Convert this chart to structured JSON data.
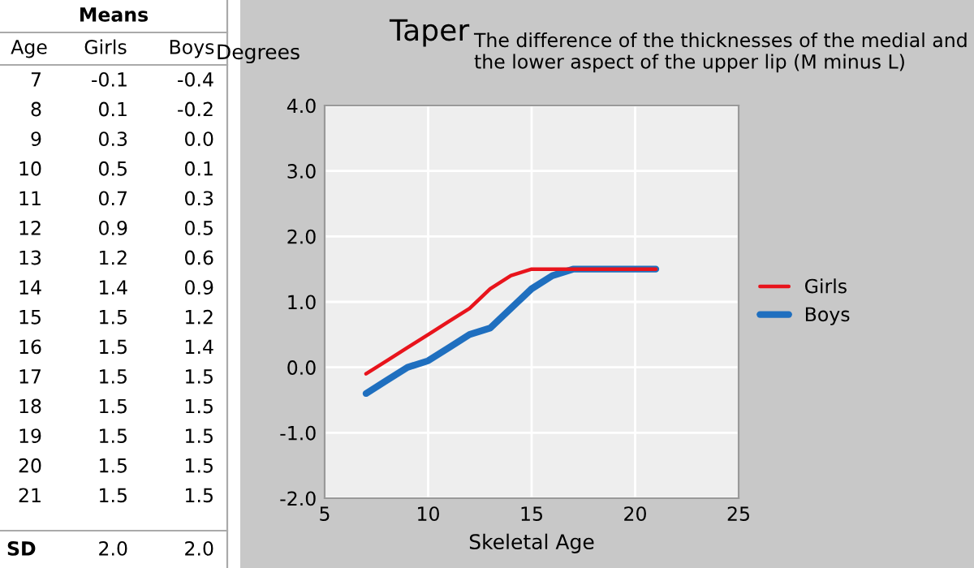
{
  "chart_data": {
    "type": "line",
    "title": "Taper",
    "subtitle": "The difference of the thicknesses of the medial and the lower aspect of the upper lip (M minus L)",
    "xlabel": "Skeletal Age",
    "ylabel": "Degrees",
    "x": [
      7,
      8,
      9,
      10,
      11,
      12,
      13,
      14,
      15,
      16,
      17,
      18,
      19,
      20,
      21
    ],
    "series": [
      {
        "name": "Girls",
        "color": "#e8141c",
        "values": [
          -0.1,
          0.1,
          0.3,
          0.5,
          0.7,
          0.9,
          1.2,
          1.4,
          1.5,
          1.5,
          1.5,
          1.5,
          1.5,
          1.5,
          1.5
        ]
      },
      {
        "name": "Boys",
        "color": "#1f6fbf",
        "values": [
          -0.4,
          -0.2,
          0.0,
          0.1,
          0.3,
          0.5,
          0.6,
          0.9,
          1.2,
          1.4,
          1.5,
          1.5,
          1.5,
          1.5,
          1.5
        ]
      }
    ],
    "xlim": [
      5,
      25
    ],
    "xticks": [
      5,
      10,
      15,
      20,
      25
    ],
    "ylim": [
      -2,
      4
    ],
    "yticks": [
      {
        "value": -2,
        "label": "-2.0"
      },
      {
        "value": -1,
        "label": "-1.0"
      },
      {
        "value": 0,
        "label": "0.0"
      },
      {
        "value": 1,
        "label": "1.0"
      },
      {
        "value": 2,
        "label": "2.0"
      },
      {
        "value": 3,
        "label": "3.0"
      },
      {
        "value": 4,
        "label": "4.0"
      }
    ],
    "grid": true,
    "legend": "right",
    "marker": "none",
    "line_style": "solid",
    "annotations": [
      "Means",
      "Age",
      "7",
      "-0.1",
      "-0.4",
      "8",
      "0.1",
      "-0.2",
      "9",
      "0.3",
      "0.0",
      "10",
      "0.5",
      "0.1",
      "11",
      "0.7",
      "0.3",
      "12",
      "0.9",
      "0.5",
      "13",
      "1.2",
      "0.6",
      "14",
      "1.4",
      "0.9",
      "15",
      "1.5",
      "1.2",
      "16",
      "1.5",
      "1.4",
      "17",
      "1.5",
      "1.5",
      "18",
      "1.5",
      "1.5",
      "19",
      "1.5",
      "1.5",
      "20",
      "1.5",
      "1.5",
      "21",
      "1.5",
      "1.5",
      "SD",
      "2.0",
      "2.0"
    ]
  }
}
